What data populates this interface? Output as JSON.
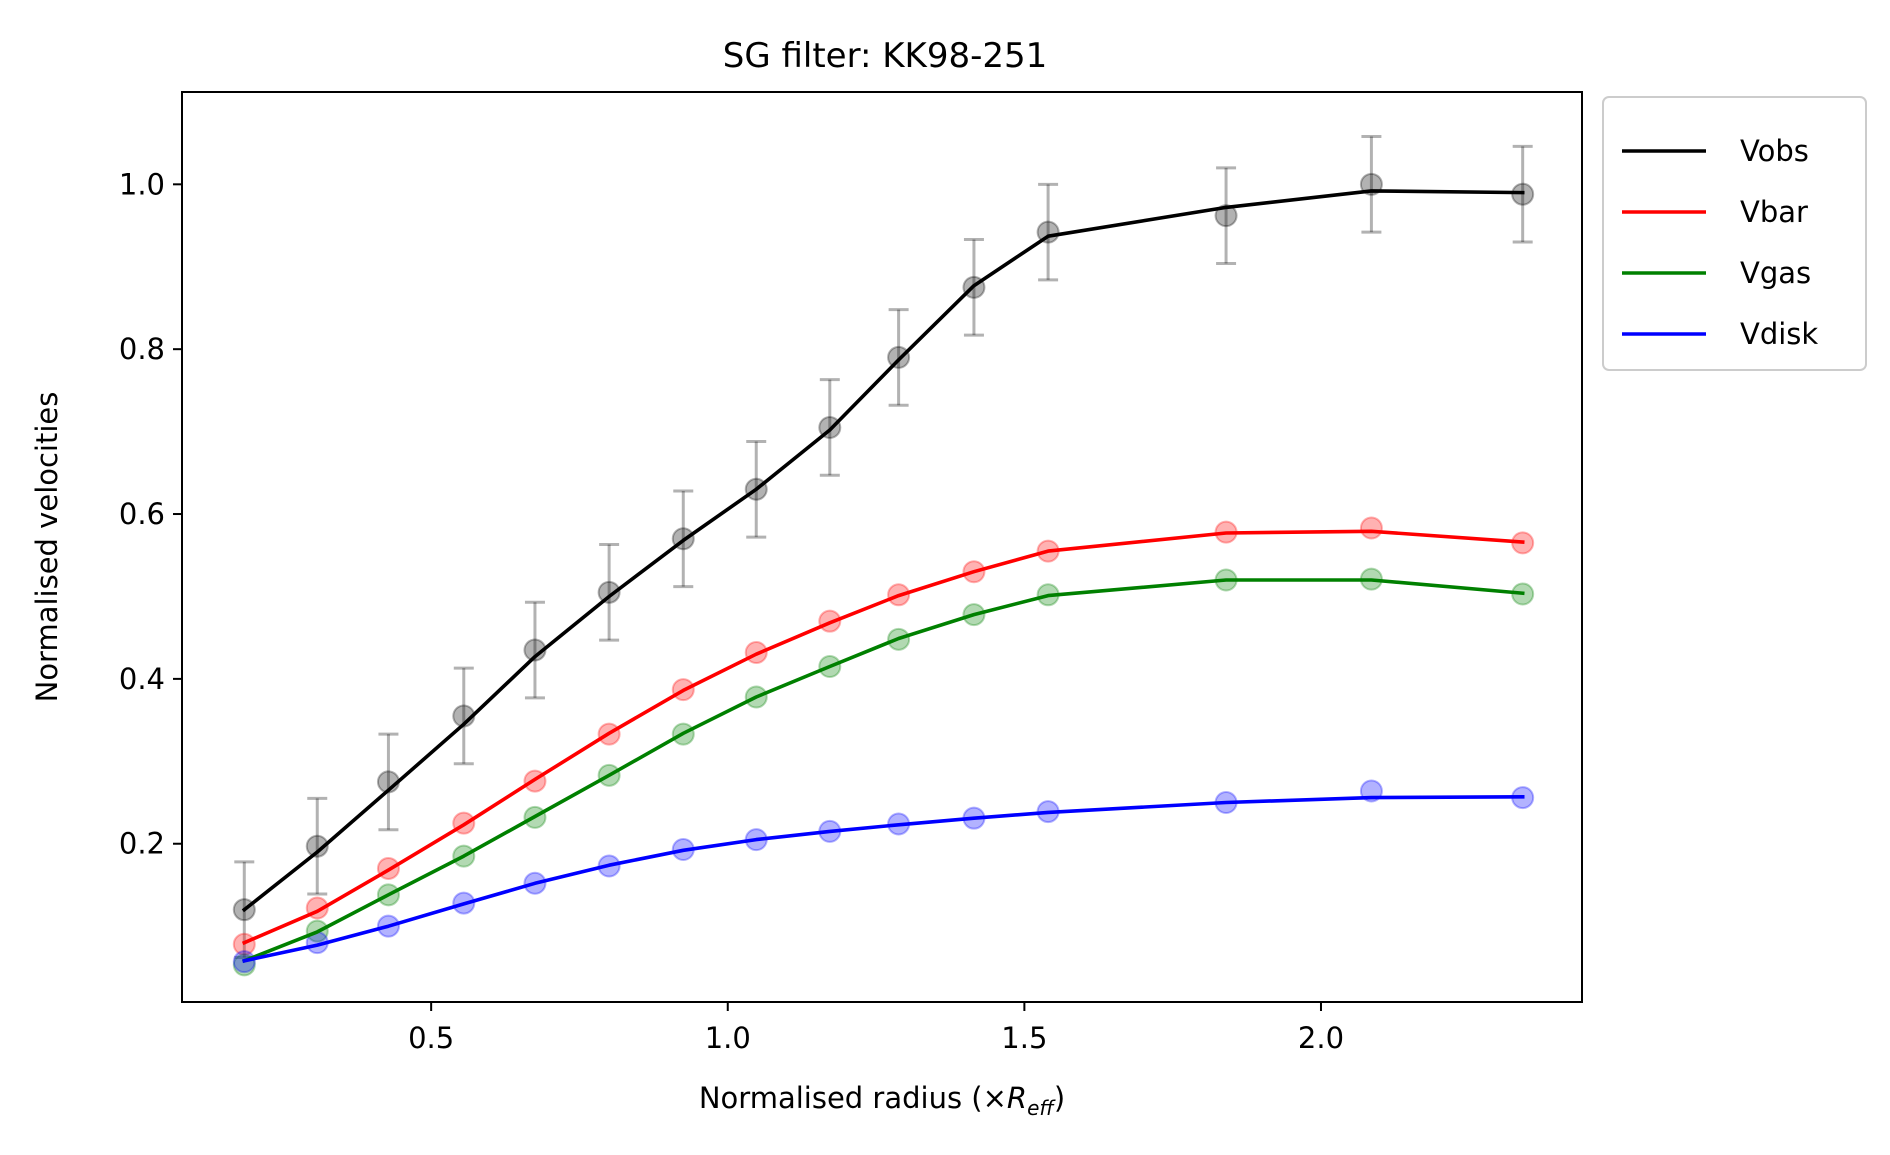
{
  "chart_data": {
    "type": "line",
    "title": "SG filter: KK98-251",
    "xlabel": "Normalised radius (×",
    "xlabel_math_base": "R",
    "xlabel_math_sub": "eff",
    "xlabel_suffix": ")",
    "ylabel": "Normalised velocities",
    "xlim": [
      0.08,
      2.44
    ],
    "ylim": [
      0.008,
      1.112
    ],
    "xticks": [
      0.5,
      1.0,
      1.5,
      2.0
    ],
    "xtick_labels": [
      "0.5",
      "1.0",
      "1.5",
      "2.0"
    ],
    "yticks": [
      0.2,
      0.4,
      0.6,
      0.8,
      1.0
    ],
    "ytick_labels": [
      "0.2",
      "0.4",
      "0.6",
      "0.8",
      "1.0"
    ],
    "x": [
      0.185,
      0.308,
      0.428,
      0.555,
      0.675,
      0.8,
      0.925,
      1.048,
      1.172,
      1.288,
      1.415,
      1.54,
      1.84,
      2.085,
      2.34
    ],
    "series": [
      {
        "name": "Vobs",
        "color": "#000000",
        "points": [
          0.12,
          0.197,
          0.275,
          0.355,
          0.435,
          0.505,
          0.57,
          0.63,
          0.705,
          0.79,
          0.875,
          0.942,
          0.962,
          1.0,
          0.988
        ],
        "line": [
          0.12,
          0.19,
          0.265,
          0.345,
          0.427,
          0.5,
          0.568,
          0.63,
          0.702,
          0.787,
          0.877,
          0.937,
          0.972,
          0.992,
          0.99
        ],
        "yerr": 0.058
      },
      {
        "name": "Vbar",
        "color": "#ff0000",
        "points": [
          0.078,
          0.122,
          0.17,
          0.225,
          0.276,
          0.333,
          0.387,
          0.432,
          0.47,
          0.502,
          0.53,
          0.555,
          0.578,
          0.583,
          0.565
        ],
        "line": [
          0.08,
          0.118,
          0.168,
          0.223,
          0.278,
          0.334,
          0.386,
          0.43,
          0.468,
          0.501,
          0.53,
          0.555,
          0.577,
          0.579,
          0.566
        ]
      },
      {
        "name": "Vgas",
        "color": "#008000",
        "points": [
          0.053,
          0.094,
          0.138,
          0.185,
          0.232,
          0.283,
          0.333,
          0.378,
          0.415,
          0.448,
          0.478,
          0.502,
          0.52,
          0.521,
          0.503
        ],
        "line": [
          0.058,
          0.093,
          0.138,
          0.185,
          0.233,
          0.283,
          0.334,
          0.378,
          0.415,
          0.449,
          0.478,
          0.501,
          0.52,
          0.52,
          0.504
        ]
      },
      {
        "name": "Vdisk",
        "color": "#0000ff",
        "points": [
          0.057,
          0.08,
          0.1,
          0.128,
          0.152,
          0.173,
          0.193,
          0.205,
          0.215,
          0.224,
          0.231,
          0.239,
          0.25,
          0.264,
          0.256
        ],
        "line": [
          0.058,
          0.077,
          0.1,
          0.127,
          0.152,
          0.174,
          0.192,
          0.205,
          0.215,
          0.223,
          0.231,
          0.238,
          0.25,
          0.256,
          0.257
        ]
      }
    ],
    "legend_position": "outside-top-right",
    "grid": false
  }
}
